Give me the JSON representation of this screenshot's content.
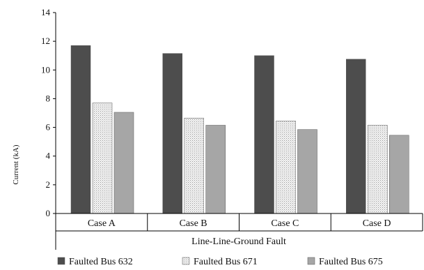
{
  "chart_data": {
    "type": "bar",
    "title": "",
    "xlabel": "Line-Line-Ground Fault",
    "ylabel": "Current (kA)",
    "ylim": [
      0,
      14
    ],
    "yticks": [
      "0",
      "2",
      "4",
      "6",
      "8",
      "10",
      "12",
      "14"
    ],
    "grid": false,
    "legend_position": "bottom",
    "categories": [
      "Case A",
      "Case B",
      "Case C",
      "Case D"
    ],
    "series": [
      {
        "name": "Faulted Bus 632",
        "values": [
          11.7,
          11.15,
          11.0,
          10.75
        ],
        "color": "#4d4d4d",
        "pattern": "solid"
      },
      {
        "name": "Faulted Bus 671",
        "values": [
          7.7,
          6.65,
          6.45,
          6.15
        ],
        "color": "#ebebeb",
        "pattern": "dotted"
      },
      {
        "name": "Faulted Bus 675",
        "values": [
          7.05,
          6.15,
          5.85,
          5.45
        ],
        "color": "#a6a6a6",
        "pattern": "solid"
      }
    ]
  }
}
